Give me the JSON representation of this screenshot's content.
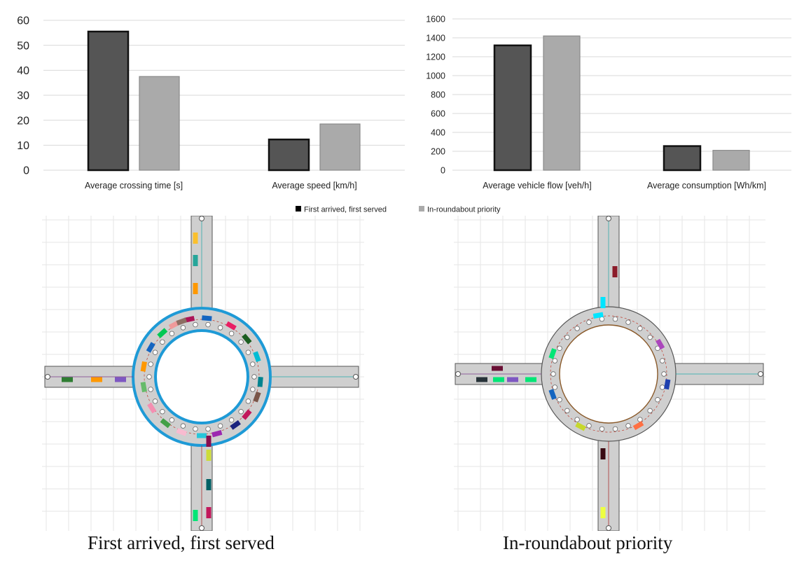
{
  "legend": {
    "items": [
      {
        "label": "First arrived, first served",
        "color": "#000000"
      },
      {
        "label": "In-roundabout priority",
        "color": "#aaaaaa"
      }
    ]
  },
  "chart_data": [
    {
      "type": "bar",
      "categories": [
        "Average crossing time [s]",
        "Average speed [km/h]"
      ],
      "series": [
        {
          "name": "First arrived, first served",
          "values": [
            55.5,
            12.3
          ],
          "color": "#555555"
        },
        {
          "name": "In-roundabout priority",
          "values": [
            37.5,
            18.5
          ],
          "color": "#aaaaaa"
        }
      ],
      "ylim": [
        0,
        60
      ],
      "yticks": [
        0,
        10,
        20,
        30,
        40,
        50,
        60
      ],
      "grid": true,
      "legend_placement": "bottom"
    },
    {
      "type": "bar",
      "categories": [
        "Average vehicle flow [veh/h]",
        "Average consumption [Wh/km]"
      ],
      "series": [
        {
          "name": "First arrived, first served",
          "values": [
            1320,
            255
          ],
          "color": "#555555"
        },
        {
          "name": "In-roundabout priority",
          "values": [
            1420,
            210
          ],
          "color": "#aaaaaa"
        }
      ],
      "ylim": [
        0,
        1600
      ],
      "yticks": [
        0,
        200,
        400,
        600,
        800,
        1000,
        1200,
        1400,
        1600
      ],
      "grid": true,
      "legend_placement": "bottom"
    }
  ],
  "captions": {
    "left": "First arrived, first served",
    "right": "In-roundabout priority"
  },
  "colors": {
    "road": "#cfcfcf",
    "ring_highlight": "#1e9ad6",
    "grid": "#e4e4e4"
  }
}
